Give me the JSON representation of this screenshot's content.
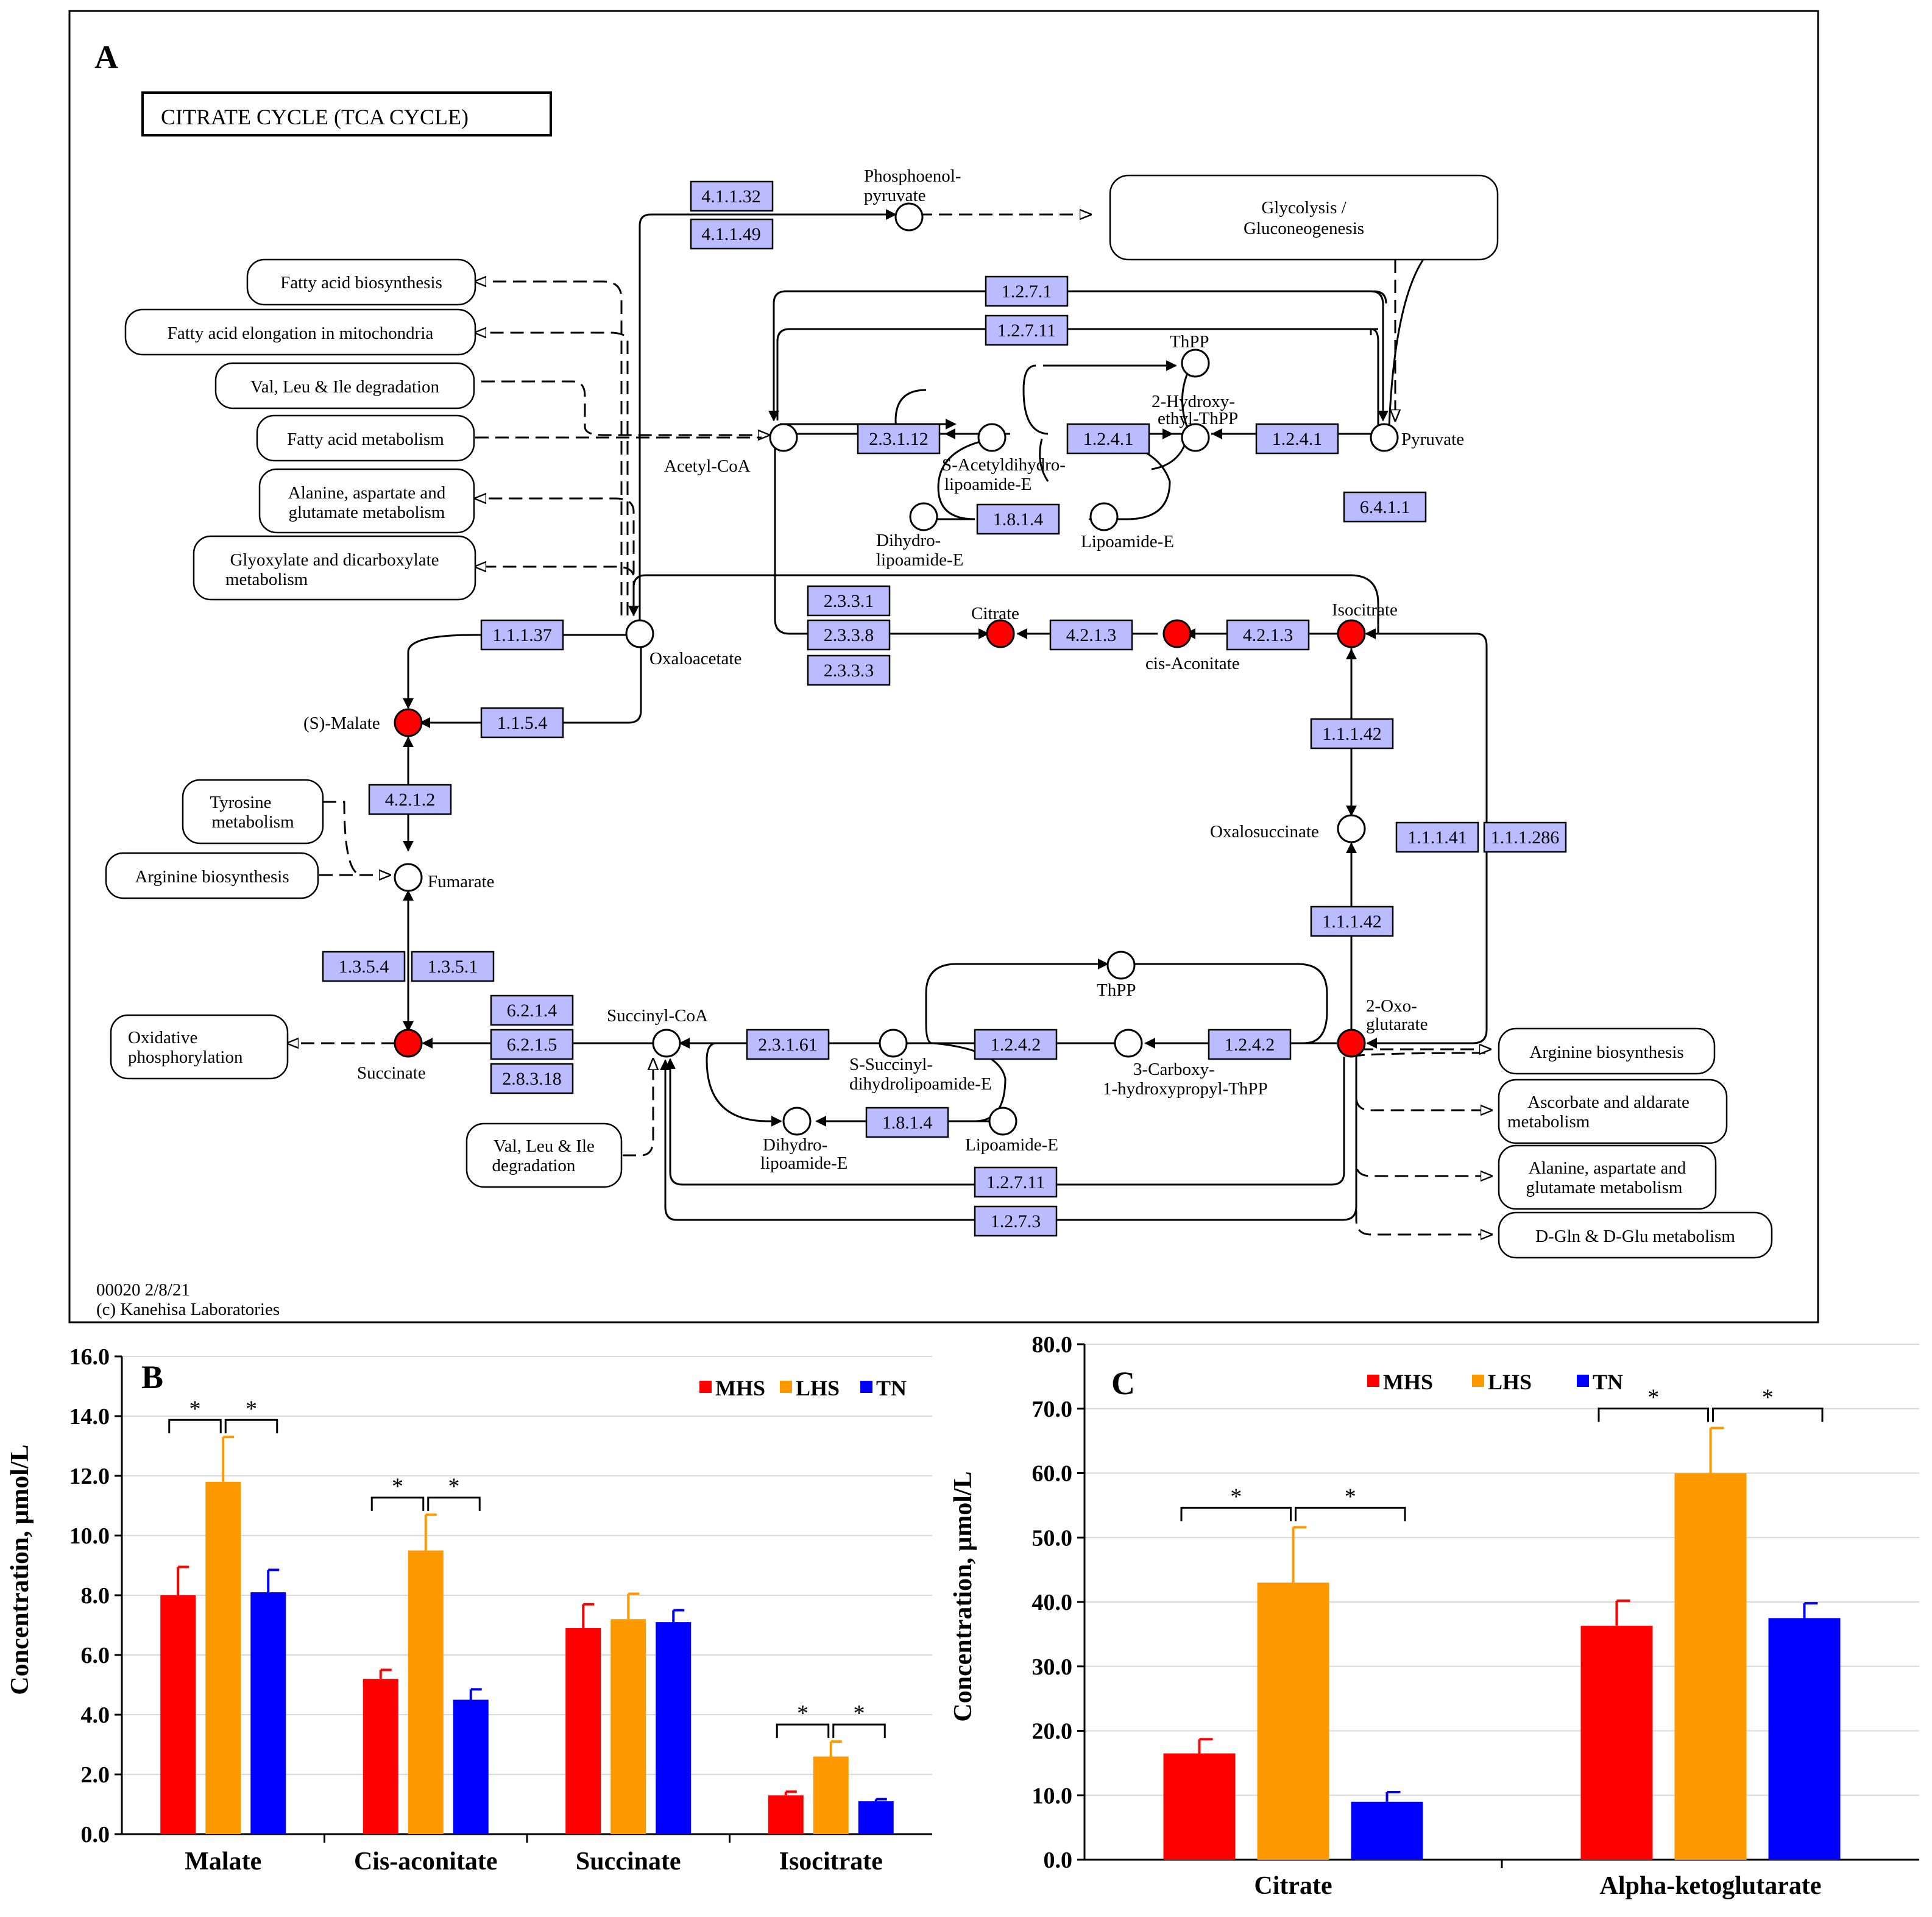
{
  "panel_a": {
    "panel_label": "A",
    "title": "CITRATE  CYCLE  (TCA CYCLE)",
    "footer_line1": "00020 2/8/21",
    "footer_line2": "(c) Kanehisa Laboratories",
    "compounds": {
      "pep1": "Phosphoenol-",
      "pep2": "pyruvate",
      "acetylcoa": "Acetyl-CoA",
      "thpp_top": "ThPP",
      "hydroxy1": "2-Hydroxy-",
      "hydroxy2": "ethyl-ThPP",
      "pyruvate": "Pyruvate",
      "sacetyl1": "S-Acetyldihydro-",
      "sacetyl2": "lipoamide-E",
      "dihydro1": "Dihydro-",
      "dihydro2": "lipoamide-E",
      "lipoamide": "Lipoamide-E",
      "oxaloacetate": "Oxaloacetate",
      "citrate": "Citrate",
      "cisaconitate": "cis-Aconitate",
      "isocitrate": "Isocitrate",
      "malate": "(S)-Malate",
      "fumarate": "Fumarate",
      "oxalosuccinate": "Oxalosuccinate",
      "succinylcoa": "Succinyl-CoA",
      "thpp_bottom": "ThPP",
      "ssuccinyl1": "S-Succinyl-",
      "ssuccinyl2": "dihydrolipoamide-E",
      "carboxy1": "3-Carboxy-",
      "carboxy2": "1-hydroxypropyl-ThPP",
      "oxoglutarate1": "2-Oxo-",
      "oxoglutarate2": "glutarate",
      "succinate": "Succinate",
      "dihydro_b1": "Dihydro-",
      "dihydro_b2": "lipoamide-E",
      "lipoamide_b": "Lipoamide-E"
    },
    "enzymes": {
      "e4_1_1_32": "4.1.1.32",
      "e4_1_1_49": "4.1.1.49",
      "e1_2_7_1": "1.2.7.1",
      "e1_2_7_11": "1.2.7.11",
      "e2_3_1_12": "2.3.1.12",
      "e1_2_4_1a": "1.2.4.1",
      "e1_2_4_1b": "1.2.4.1",
      "e1_8_1_4": "1.8.1.4",
      "e6_4_1_1": "6.4.1.1",
      "e2_3_3_1": "2.3.3.1",
      "e2_3_3_8": "2.3.3.8",
      "e2_3_3_3": "2.3.3.3",
      "e4_2_1_3a": "4.2.1.3",
      "e4_2_1_3b": "4.2.1.3",
      "e1_1_1_37": "1.1.1.37",
      "e1_1_5_4": "1.1.5.4",
      "e4_2_1_2": "4.2.1.2",
      "e1_1_1_42a": "1.1.1.42",
      "e1_1_1_42b": "1.1.1.42",
      "e1_1_1_41": "1.1.1.41",
      "e1_1_1_286": "1.1.1.286",
      "e1_3_5_4": "1.3.5.4",
      "e1_3_5_1": "1.3.5.1",
      "e6_2_1_4": "6.2.1.4",
      "e6_2_1_5": "6.2.1.5",
      "e2_8_3_18": "2.8.3.18",
      "e2_3_1_61": "2.3.1.61",
      "e1_2_4_2a": "1.2.4.2",
      "e1_2_4_2b": "1.2.4.2",
      "e1_8_1_4b": "1.8.1.4",
      "e1_2_7_11b": "1.2.7.11",
      "e1_2_7_3": "1.2.7.3"
    },
    "pathways": {
      "glycolysis1": "Glycolysis /",
      "glycolysis2": "Gluconeogenesis",
      "fatty_biosyn": "Fatty acid biosynthesis",
      "fatty_elong": "Fatty acid elongation in mitochondria",
      "valleu1": "Val, Leu & Ile degradation",
      "fatty_metab": "Fatty acid metabolism",
      "ala1": "Alanine, aspartate and",
      "ala2": "glutamate metabolism",
      "glyox1": "Glyoxylate and dicarboxylate",
      "glyox2": "metabolism",
      "tyr1": "Tyrosine",
      "tyr2": "metabolism",
      "arg_left": "Arginine biosynthesis",
      "oxphos1": "Oxidative",
      "oxphos2": "phosphorylation",
      "valleu2a": "Val, Leu & Ile",
      "valleu2b": "degradation",
      "arg_right": "Arginine biosynthesis",
      "asc1": "Ascorbate and aldarate",
      "asc2": "metabolism",
      "ala_r1": "Alanine, aspartate and",
      "ala_r2": "glutamate metabolism",
      "dgln": "D-Gln & D-Glu metabolism"
    }
  },
  "chart_data": [
    {
      "type": "bar",
      "panel": "B",
      "categories": [
        "Malate",
        "Cis-aconitate",
        "Succinate",
        "Isocitrate"
      ],
      "series": [
        {
          "name": "MHS",
          "color": "#ff0000",
          "values": [
            8.0,
            5.2,
            6.9,
            1.3
          ],
          "errors": [
            0.95,
            0.3,
            0.8,
            0.12
          ]
        },
        {
          "name": "LHS",
          "color": "#ff9900",
          "values": [
            11.8,
            9.5,
            7.2,
            2.6
          ],
          "errors": [
            1.5,
            1.2,
            0.85,
            0.5
          ]
        },
        {
          "name": "TN",
          "color": "#0000ff",
          "values": [
            8.1,
            4.5,
            7.1,
            1.1
          ],
          "errors": [
            0.75,
            0.35,
            0.4,
            0.07
          ]
        }
      ],
      "significance": [
        "*",
        "*",
        "*",
        "*",
        "*",
        "*"
      ],
      "ylabel": "Concentration, μmol/L",
      "ylim": [
        0,
        16
      ],
      "yticks": [
        "0.0",
        "2.0",
        "4.0",
        "6.0",
        "8.0",
        "10.0",
        "12.0",
        "14.0",
        "16.0"
      ],
      "legend": "top-right"
    },
    {
      "type": "bar",
      "panel": "C",
      "categories": [
        "Citrate",
        "Alpha-ketoglutarate"
      ],
      "series": [
        {
          "name": "MHS",
          "color": "#ff0000",
          "values": [
            16.5,
            36.3
          ],
          "errors": [
            2.2,
            3.9
          ]
        },
        {
          "name": "LHS",
          "color": "#ff9900",
          "values": [
            43.0,
            60.0
          ],
          "errors": [
            8.6,
            7.0
          ]
        },
        {
          "name": "TN",
          "color": "#0000ff",
          "values": [
            9.0,
            37.5
          ],
          "errors": [
            1.5,
            2.3
          ]
        }
      ],
      "significance": [
        "*",
        "*",
        "*",
        "*"
      ],
      "ylabel": "Concentration, μmol/L",
      "ylim": [
        0,
        80
      ],
      "yticks": [
        "0.0",
        "10.0",
        "20.0",
        "30.0",
        "40.0",
        "50.0",
        "60.0",
        "70.0",
        "80.0"
      ],
      "legend": "top-center"
    }
  ]
}
